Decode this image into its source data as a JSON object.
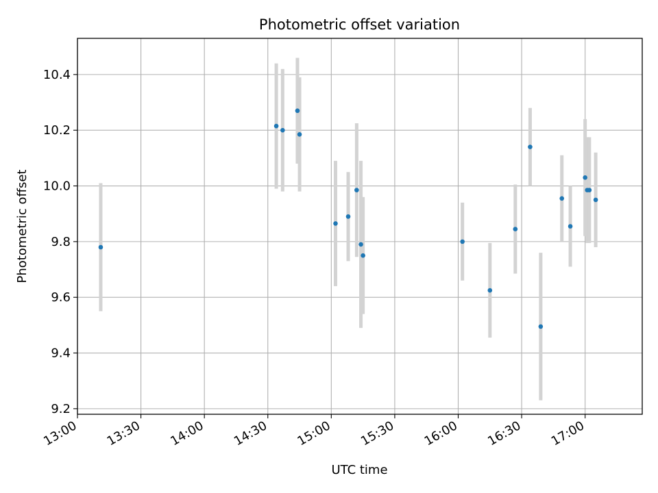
{
  "chart_data": {
    "type": "scatter",
    "title": "Photometric offset variation",
    "xlabel": "UTC time",
    "ylabel": "Photometric offset",
    "grid": true,
    "xlim": [
      "13:00",
      "17:27"
    ],
    "ylim": [
      9.18,
      10.53
    ],
    "x_ticks": [
      "13:00",
      "13:30",
      "14:00",
      "14:30",
      "15:00",
      "15:30",
      "16:00",
      "16:30",
      "17:00"
    ],
    "y_ticks": [
      "9.2",
      "9.4",
      "9.6",
      "9.8",
      "10.0",
      "10.2",
      "10.4"
    ],
    "marker_color": "#1f77b4",
    "errorbar_color": "#d3d3d3",
    "points": [
      {
        "x": "13:11",
        "y": 9.78,
        "err": 0.23
      },
      {
        "x": "14:34",
        "y": 10.215,
        "err": 0.225
      },
      {
        "x": "14:37",
        "y": 10.2,
        "err": 0.22
      },
      {
        "x": "14:44",
        "y": 10.27,
        "err": 0.19
      },
      {
        "x": "14:45",
        "y": 10.185,
        "err": 0.205
      },
      {
        "x": "15:02",
        "y": 9.865,
        "err": 0.225
      },
      {
        "x": "15:08",
        "y": 9.89,
        "err": 0.16
      },
      {
        "x": "15:12",
        "y": 9.985,
        "err": 0.24
      },
      {
        "x": "15:14",
        "y": 9.79,
        "err": 0.3
      },
      {
        "x": "15:15",
        "y": 9.75,
        "err": 0.21
      },
      {
        "x": "16:02",
        "y": 9.8,
        "err": 0.14
      },
      {
        "x": "16:15",
        "y": 9.625,
        "err": 0.17
      },
      {
        "x": "16:27",
        "y": 9.845,
        "err": 0.16
      },
      {
        "x": "16:34",
        "y": 10.14,
        "err": 0.14
      },
      {
        "x": "16:39",
        "y": 9.495,
        "err": 0.265
      },
      {
        "x": "16:49",
        "y": 9.955,
        "err": 0.155
      },
      {
        "x": "16:53",
        "y": 9.855,
        "err": 0.145
      },
      {
        "x": "17:00",
        "y": 10.03,
        "err": 0.21
      },
      {
        "x": "17:01",
        "y": 9.985,
        "err": 0.19
      },
      {
        "x": "17:02",
        "y": 9.985,
        "err": 0.19
      },
      {
        "x": "17:05",
        "y": 9.95,
        "err": 0.17
      }
    ]
  }
}
